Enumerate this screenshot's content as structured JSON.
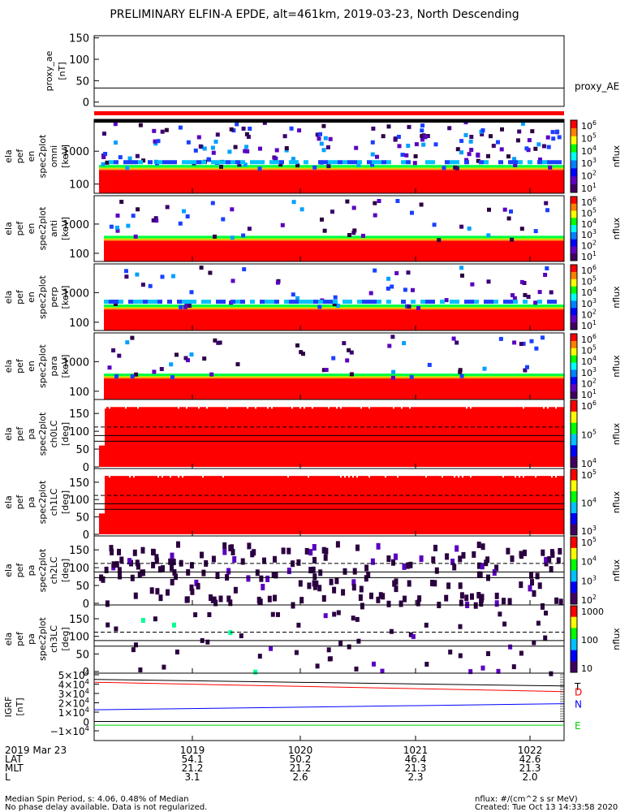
{
  "title": "PRELIMINARY ELFIN-A EPDE, alt=461km, 2019-03-23, North Descending",
  "chart_data": [
    {
      "type": "line",
      "panel": "proxy_ae",
      "ylabel": [
        "proxy_ae",
        "[nT]"
      ],
      "ylim": [
        -10,
        155
      ],
      "yticks": [
        "150",
        "100",
        "50",
        "0"
      ],
      "series": [
        {
          "name": "proxy_AE",
          "values": [
            33,
            33
          ]
        }
      ],
      "marker_bar_color": "#ff0000"
    },
    {
      "type": "heatmap",
      "panel": "spec-omni",
      "ylabel": [
        "ela",
        "pef",
        "en",
        "spec2plot",
        "omni",
        "[keV]"
      ],
      "scale": "log",
      "yticks": [
        "1000",
        "100"
      ],
      "colorbar": {
        "label": "nflux",
        "ticks": [
          "10^6",
          "10^5",
          "10^4",
          "10^3",
          "10^2",
          "10^1"
        ]
      }
    },
    {
      "type": "heatmap",
      "panel": "spec-anti",
      "ylabel": [
        "ela",
        "pef",
        "en",
        "spec2plot",
        "anti",
        "[keV]"
      ],
      "scale": "log",
      "yticks": [
        "1000",
        "100"
      ],
      "colorbar": {
        "label": "nflux",
        "ticks": [
          "10^6",
          "10^5",
          "10^4",
          "10^3",
          "10^2",
          "10^1"
        ]
      }
    },
    {
      "type": "heatmap",
      "panel": "spec-perp",
      "ylabel": [
        "ela",
        "pef",
        "en",
        "spec2plot",
        "perp",
        "[keV]"
      ],
      "scale": "log",
      "yticks": [
        "1000",
        "100"
      ],
      "colorbar": {
        "label": "nflux",
        "ticks": [
          "10^6",
          "10^5",
          "10^4",
          "10^3",
          "10^2",
          "10^1"
        ]
      }
    },
    {
      "type": "heatmap",
      "panel": "spec-para",
      "ylabel": [
        "ela",
        "pef",
        "en",
        "spec2plot",
        "para",
        "[keV]"
      ],
      "scale": "log",
      "yticks": [
        "1000",
        "100"
      ],
      "colorbar": {
        "label": "nflux",
        "ticks": [
          "10^6",
          "10^5",
          "10^4",
          "10^3",
          "10^2",
          "10^1"
        ]
      }
    },
    {
      "type": "heatmap",
      "panel": "pa-ch0",
      "ylabel": [
        "ela",
        "pef",
        "pa",
        "spec2plot",
        "ch0LC",
        "[deg]"
      ],
      "ylim": [
        0,
        180
      ],
      "yticks": [
        "150",
        "100",
        "50",
        "0"
      ],
      "colorbar": {
        "label": "nflux",
        "ticks": [
          "10^6",
          "10^5",
          "10^4"
        ]
      }
    },
    {
      "type": "heatmap",
      "panel": "pa-ch1",
      "ylabel": [
        "ela",
        "pef",
        "pa",
        "spec2plot",
        "ch1LC",
        "[deg]"
      ],
      "ylim": [
        0,
        180
      ],
      "yticks": [
        "150",
        "100",
        "50",
        "0"
      ],
      "colorbar": {
        "label": "nflux",
        "ticks": [
          "10^5",
          "10^4",
          "10^3"
        ]
      }
    },
    {
      "type": "heatmap",
      "panel": "pa-ch2",
      "ylabel": [
        "ela",
        "pef",
        "pa",
        "spec2plot",
        "ch2LC",
        "[deg]"
      ],
      "ylim": [
        0,
        180
      ],
      "yticks": [
        "150",
        "100",
        "50",
        "0"
      ],
      "colorbar": {
        "label": "nflux",
        "ticks": [
          "10^5",
          "10^4",
          "10^3",
          "10^2"
        ]
      }
    },
    {
      "type": "heatmap",
      "panel": "pa-ch3",
      "ylabel": [
        "ela",
        "pef",
        "pa",
        "spec2plot",
        "ch3LC",
        "[deg]"
      ],
      "ylim": [
        0,
        180
      ],
      "yticks": [
        "150",
        "100",
        "50",
        "0"
      ],
      "colorbar": {
        "label": "nflux",
        "ticks": [
          "1000",
          "100",
          "10"
        ]
      }
    },
    {
      "type": "line",
      "panel": "igrf",
      "ylabel": [
        "IGRF",
        "[nT]"
      ],
      "ylim": [
        -10000,
        50000
      ],
      "yticks": [
        "5×10^4",
        "4×10^4",
        "3×10^4",
        "2×10^4",
        "1×10^4",
        "0",
        "−1×10^4"
      ],
      "series": [
        {
          "name": "T",
          "color": "#000000",
          "values": [
            45000,
            38000
          ]
        },
        {
          "name": "D",
          "color": "#ff0000",
          "values": [
            42000,
            32000
          ]
        },
        {
          "name": "N",
          "color": "#0000ff",
          "values": [
            12500,
            19000
          ]
        },
        {
          "name": "E",
          "color": "#00cc00",
          "values": [
            -4000,
            -4000
          ]
        }
      ]
    }
  ],
  "x_axis": {
    "date": "2019 Mar 23",
    "row_labels": [
      "LAT",
      "MLT",
      "L"
    ],
    "columns": [
      {
        "time": "1019",
        "lat": "54.1",
        "mlt": "21.2",
        "l": "3.1"
      },
      {
        "time": "1020",
        "lat": "50.2",
        "mlt": "21.2",
        "l": "2.6"
      },
      {
        "time": "1021",
        "lat": "46.4",
        "mlt": "21.3",
        "l": "2.3"
      },
      {
        "time": "1022",
        "lat": "42.6",
        "mlt": "21.3",
        "l": "2.0"
      }
    ]
  },
  "footer": {
    "left_1": "Median Spin Period, s: 4.06, 0.48% of Median",
    "left_2": "No phase delay available. Data is not regularized.",
    "right_1": "nflux: #/(cm^2 s sr MeV)",
    "right_2": "Created: Tue Oct 13 14:33:58 2020"
  }
}
